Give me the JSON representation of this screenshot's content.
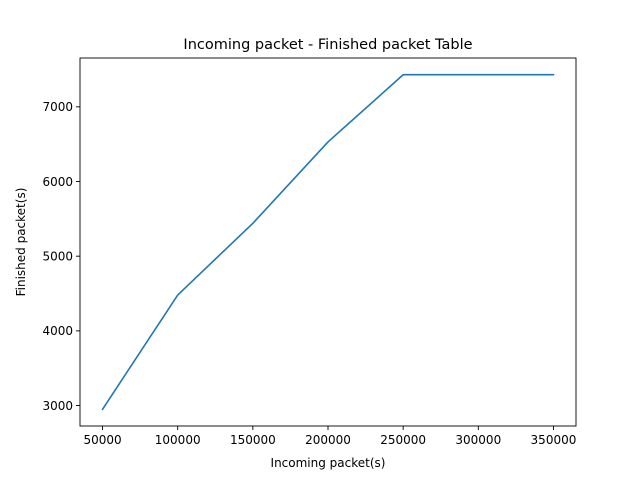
{
  "chart_data": {
    "type": "line",
    "title": "Incoming packet - Finished packet Table",
    "xlabel": "Incoming packet(s)",
    "ylabel": "Finished packet(s)",
    "x": [
      50000,
      100000,
      150000,
      200000,
      250000,
      300000,
      350000
    ],
    "series": [
      {
        "color": "#1f77b4",
        "values": [
          2950,
          4480,
          5440,
          6530,
          7430,
          7430,
          7430
        ]
      }
    ],
    "xlim": [
      35000,
      365000
    ],
    "ylim": [
      2726,
      7654
    ],
    "xticks": [
      50000,
      100000,
      150000,
      200000,
      250000,
      300000,
      350000
    ],
    "yticks": [
      3000,
      4000,
      5000,
      6000,
      7000
    ],
    "grid": false,
    "legend": "none"
  }
}
